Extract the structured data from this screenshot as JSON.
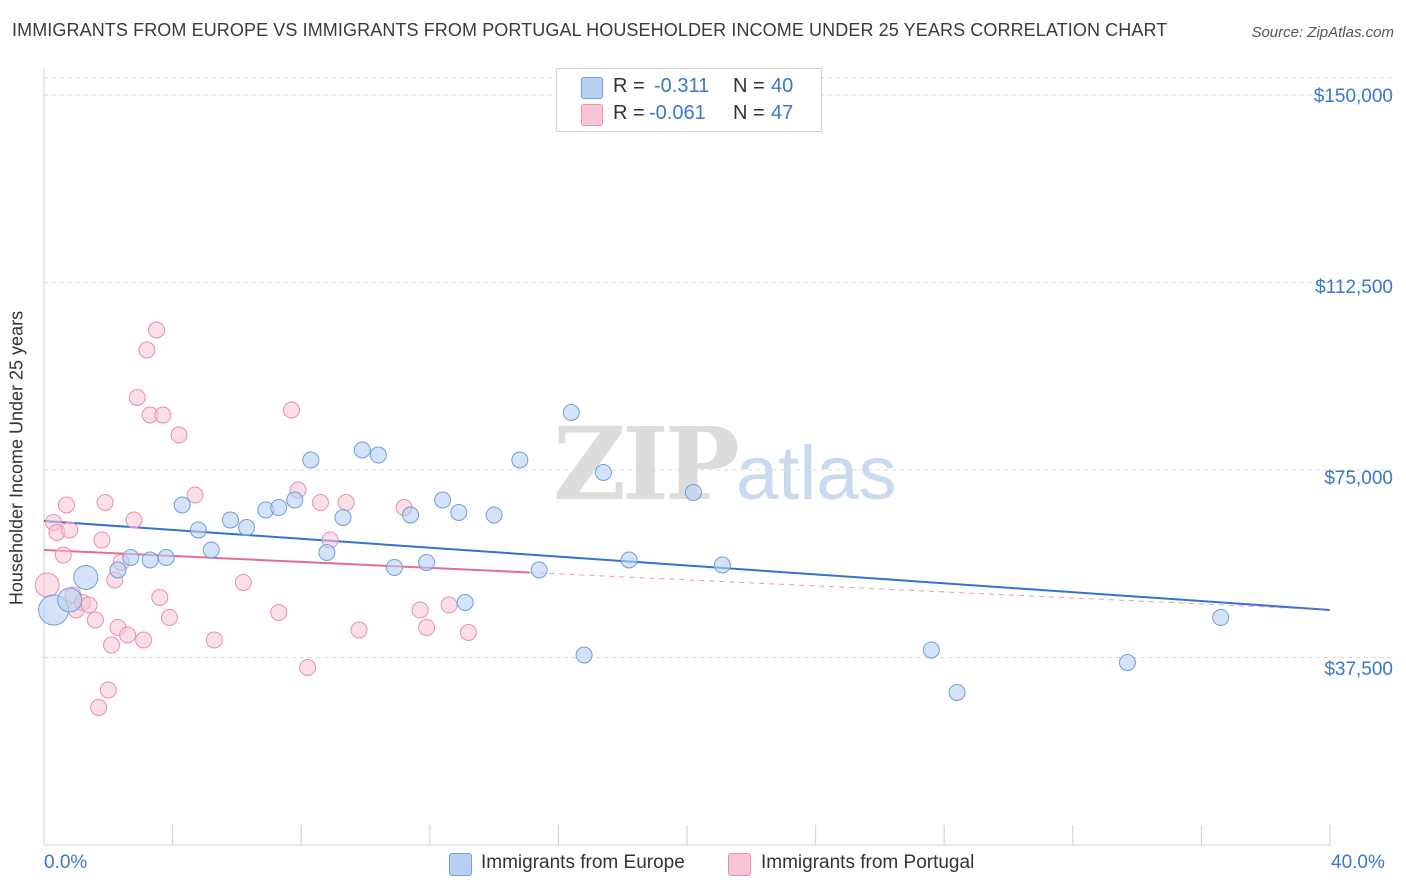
{
  "title": "IMMIGRANTS FROM EUROPE VS IMMIGRANTS FROM PORTUGAL HOUSEHOLDER INCOME UNDER 25 YEARS CORRELATION CHART",
  "source": "Source: ZipAtlas.com",
  "watermark": {
    "zip": "ZIP",
    "atlas": "atlas"
  },
  "colors": {
    "europe_fill": "#b7d0f2",
    "europe_stroke": "#6f9ee0",
    "europe_line": "#3373d1",
    "portugal_fill": "#f7c5d5",
    "portugal_stroke": "#ea8fae",
    "portugal_line": "#e26d97",
    "grid": "#d8d8d8",
    "tick_text": "#3a78c9"
  },
  "legend": {
    "europe": {
      "r_label": "R =",
      "r_value": "-0.311",
      "n_label": "N =",
      "n_value": "40"
    },
    "portugal": {
      "r_label": "R =",
      "r_value": "-0.061",
      "n_label": "N =",
      "n_value": "47"
    }
  },
  "bottom_legend": {
    "europe": "Immigrants from Europe",
    "portugal": "Immigrants from Portugal"
  },
  "chart_data": {
    "type": "scatter",
    "title": "IMMIGRANTS FROM EUROPE VS IMMIGRANTS FROM PORTUGAL HOUSEHOLDER INCOME UNDER 25 YEARS CORRELATION CHART",
    "xlabel": "",
    "ylabel": "Householder Income Under 25 years",
    "xlim": [
      0,
      40
    ],
    "ylim": [
      0,
      157000
    ],
    "x_tick_labels": [
      "0.0%",
      "40.0%"
    ],
    "y_ticks": [
      37500,
      75000,
      112500,
      150000
    ],
    "y_tick_labels": [
      "$37,500",
      "$75,000",
      "$112,500",
      "$150,000"
    ],
    "grid": true,
    "legend_position": "top-center",
    "series": [
      {
        "name": "Immigrants from Europe",
        "r": -0.311,
        "n": 40,
        "trend": {
          "x": [
            0,
            40
          ],
          "y": [
            64800,
            47000
          ],
          "dashed_after_x": null
        },
        "points": [
          {
            "x": 0.3,
            "y": 47000,
            "s": 3
          },
          {
            "x": 0.8,
            "y": 49000,
            "s": 2
          },
          {
            "x": 1.3,
            "y": 53500,
            "s": 2
          },
          {
            "x": 2.3,
            "y": 55000,
            "s": 1
          },
          {
            "x": 2.7,
            "y": 57500,
            "s": 1
          },
          {
            "x": 3.3,
            "y": 57000,
            "s": 1
          },
          {
            "x": 3.8,
            "y": 57500,
            "s": 1
          },
          {
            "x": 4.3,
            "y": 68000,
            "s": 1
          },
          {
            "x": 4.8,
            "y": 63000,
            "s": 1
          },
          {
            "x": 5.2,
            "y": 59000,
            "s": 1
          },
          {
            "x": 5.8,
            "y": 65000,
            "s": 1
          },
          {
            "x": 6.3,
            "y": 63500,
            "s": 1
          },
          {
            "x": 6.9,
            "y": 67000,
            "s": 1
          },
          {
            "x": 7.3,
            "y": 67500,
            "s": 1
          },
          {
            "x": 7.8,
            "y": 69000,
            "s": 1
          },
          {
            "x": 8.3,
            "y": 77000,
            "s": 1
          },
          {
            "x": 8.8,
            "y": 58500,
            "s": 1
          },
          {
            "x": 9.3,
            "y": 65500,
            "s": 1
          },
          {
            "x": 9.9,
            "y": 79000,
            "s": 1
          },
          {
            "x": 10.4,
            "y": 78000,
            "s": 1
          },
          {
            "x": 10.9,
            "y": 55500,
            "s": 1
          },
          {
            "x": 11.4,
            "y": 66000,
            "s": 1
          },
          {
            "x": 11.9,
            "y": 56500,
            "s": 1
          },
          {
            "x": 12.4,
            "y": 69000,
            "s": 1
          },
          {
            "x": 12.9,
            "y": 66500,
            "s": 1
          },
          {
            "x": 13.1,
            "y": 48500,
            "s": 1
          },
          {
            "x": 14.0,
            "y": 66000,
            "s": 1
          },
          {
            "x": 14.8,
            "y": 77000,
            "s": 1
          },
          {
            "x": 15.4,
            "y": 55000,
            "s": 1
          },
          {
            "x": 16.4,
            "y": 86500,
            "s": 1
          },
          {
            "x": 16.8,
            "y": 38000,
            "s": 1
          },
          {
            "x": 17.4,
            "y": 74500,
            "s": 1
          },
          {
            "x": 18.2,
            "y": 57000,
            "s": 1
          },
          {
            "x": 20.2,
            "y": 70500,
            "s": 1
          },
          {
            "x": 21.1,
            "y": 56000,
            "s": 1
          },
          {
            "x": 27.6,
            "y": 39000,
            "s": 1
          },
          {
            "x": 28.4,
            "y": 30500,
            "s": 1
          },
          {
            "x": 33.7,
            "y": 36500,
            "s": 1
          },
          {
            "x": 36.6,
            "y": 45500,
            "s": 1
          }
        ]
      },
      {
        "name": "Immigrants from Portugal",
        "r": -0.061,
        "n": 47,
        "trend": {
          "x": [
            0,
            15.1
          ],
          "y": [
            59000,
            54500
          ],
          "dashed_to_x": 40,
          "dashed_to_y": 47000
        },
        "points": [
          {
            "x": 0.1,
            "y": 52000,
            "s": 2
          },
          {
            "x": 0.3,
            "y": 64500,
            "s": 1
          },
          {
            "x": 0.4,
            "y": 62500,
            "s": 1
          },
          {
            "x": 0.6,
            "y": 58000,
            "s": 1
          },
          {
            "x": 0.7,
            "y": 68000,
            "s": 1
          },
          {
            "x": 0.8,
            "y": 63000,
            "s": 1
          },
          {
            "x": 0.9,
            "y": 50000,
            "s": 1
          },
          {
            "x": 1.0,
            "y": 47000,
            "s": 1
          },
          {
            "x": 1.2,
            "y": 48500,
            "s": 1
          },
          {
            "x": 1.4,
            "y": 48000,
            "s": 1
          },
          {
            "x": 1.6,
            "y": 45000,
            "s": 1
          },
          {
            "x": 1.7,
            "y": 27500,
            "s": 1
          },
          {
            "x": 1.8,
            "y": 61000,
            "s": 1
          },
          {
            "x": 1.9,
            "y": 68500,
            "s": 1
          },
          {
            "x": 2.0,
            "y": 31000,
            "s": 1
          },
          {
            "x": 2.1,
            "y": 40000,
            "s": 1
          },
          {
            "x": 2.2,
            "y": 53000,
            "s": 1
          },
          {
            "x": 2.3,
            "y": 43500,
            "s": 1
          },
          {
            "x": 2.4,
            "y": 56500,
            "s": 1
          },
          {
            "x": 2.6,
            "y": 42000,
            "s": 1
          },
          {
            "x": 2.8,
            "y": 65000,
            "s": 1
          },
          {
            "x": 2.9,
            "y": 89500,
            "s": 1
          },
          {
            "x": 3.1,
            "y": 41000,
            "s": 1
          },
          {
            "x": 3.2,
            "y": 99000,
            "s": 1
          },
          {
            "x": 3.3,
            "y": 86000,
            "s": 1
          },
          {
            "x": 3.5,
            "y": 103000,
            "s": 1
          },
          {
            "x": 3.6,
            "y": 49500,
            "s": 1
          },
          {
            "x": 3.7,
            "y": 86000,
            "s": 1
          },
          {
            "x": 3.9,
            "y": 45500,
            "s": 1
          },
          {
            "x": 4.2,
            "y": 82000,
            "s": 1
          },
          {
            "x": 4.7,
            "y": 70000,
            "s": 1
          },
          {
            "x": 5.3,
            "y": 41000,
            "s": 1
          },
          {
            "x": 6.2,
            "y": 52500,
            "s": 1
          },
          {
            "x": 7.3,
            "y": 46500,
            "s": 1
          },
          {
            "x": 7.7,
            "y": 87000,
            "s": 1
          },
          {
            "x": 7.9,
            "y": 71000,
            "s": 1
          },
          {
            "x": 8.2,
            "y": 35500,
            "s": 1
          },
          {
            "x": 8.6,
            "y": 68500,
            "s": 1
          },
          {
            "x": 8.9,
            "y": 61000,
            "s": 1
          },
          {
            "x": 9.4,
            "y": 68500,
            "s": 1
          },
          {
            "x": 9.8,
            "y": 43000,
            "s": 1
          },
          {
            "x": 11.2,
            "y": 67500,
            "s": 1
          },
          {
            "x": 11.7,
            "y": 47000,
            "s": 1
          },
          {
            "x": 11.9,
            "y": 43500,
            "s": 1
          },
          {
            "x": 12.6,
            "y": 48000,
            "s": 1
          },
          {
            "x": 13.2,
            "y": 42500,
            "s": 1
          }
        ]
      }
    ]
  }
}
